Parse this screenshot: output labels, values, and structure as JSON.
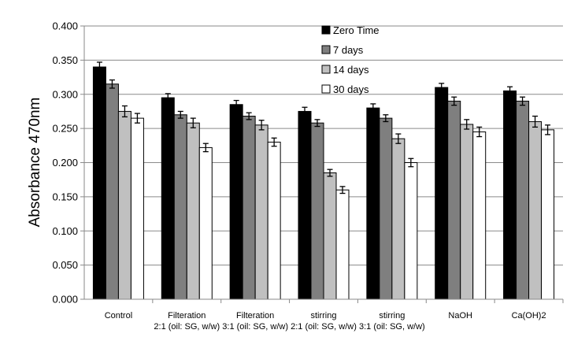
{
  "chart_data": {
    "type": "bar",
    "ylabel": "Absorbance 470nm",
    "xlabel": "",
    "ylim": [
      0,
      0.4
    ],
    "yticks": [
      "0.000",
      "0.050",
      "0.100",
      "0.150",
      "0.200",
      "0.250",
      "0.300",
      "0.350",
      "0.400"
    ],
    "grid": true,
    "legend_position": "top-center",
    "categories": [
      [
        "Control"
      ],
      [
        "Filteration",
        "2:1 (oil: SG, w/w)"
      ],
      [
        "Filteration",
        "3:1 (oil: SG, w/w)"
      ],
      [
        "stirring",
        "2:1 (oil: SG, w/w)"
      ],
      [
        "stirring",
        "3:1 (oil: SG, w/w)"
      ],
      [
        "NaOH"
      ],
      [
        "Ca(OH)2"
      ]
    ],
    "series": [
      {
        "name": "Zero Time",
        "color": "#000000",
        "values": [
          0.34,
          0.295,
          0.285,
          0.275,
          0.28,
          0.31,
          0.305
        ],
        "errors": [
          0.007,
          0.006,
          0.006,
          0.006,
          0.006,
          0.006,
          0.006
        ]
      },
      {
        "name": "7 days",
        "color": "#7f7f7f",
        "values": [
          0.315,
          0.27,
          0.268,
          0.258,
          0.265,
          0.29,
          0.29
        ],
        "errors": [
          0.006,
          0.005,
          0.005,
          0.005,
          0.005,
          0.006,
          0.006
        ]
      },
      {
        "name": "14 days",
        "color": "#c0c0c0",
        "values": [
          0.275,
          0.258,
          0.255,
          0.185,
          0.235,
          0.256,
          0.26
        ],
        "errors": [
          0.008,
          0.007,
          0.007,
          0.005,
          0.007,
          0.007,
          0.008
        ]
      },
      {
        "name": "30 days",
        "color": "#ffffff",
        "values": [
          0.265,
          0.222,
          0.23,
          0.16,
          0.2,
          0.245,
          0.248
        ],
        "errors": [
          0.007,
          0.006,
          0.006,
          0.005,
          0.006,
          0.007,
          0.007
        ]
      }
    ]
  }
}
